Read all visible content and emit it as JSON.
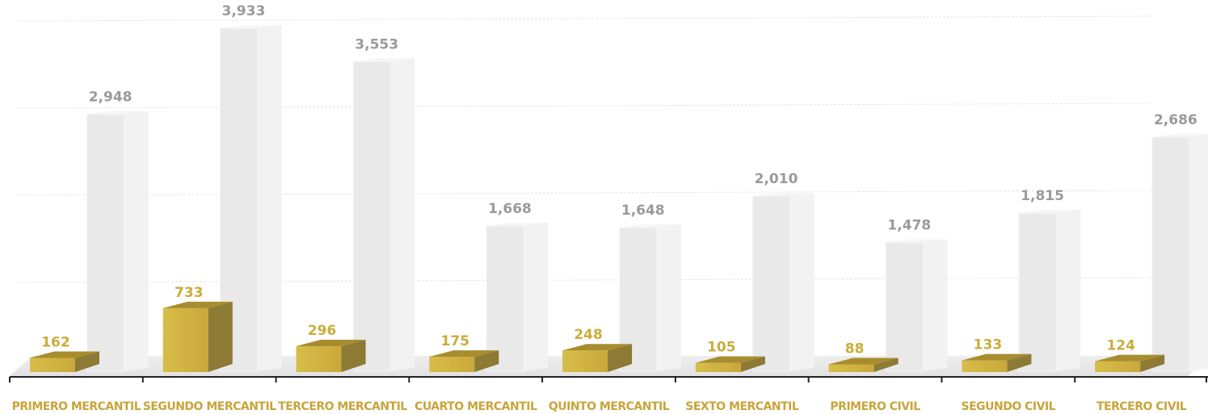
{
  "chart_data": {
    "type": "bar",
    "categories": [
      "PRIMERO MERCANTIL",
      "SEGUNDO MERCANTIL",
      "TERCERO MERCANTIL",
      "CUARTO MERCANTIL",
      "QUINTO MERCANTIL",
      "SEXTO MERCANTIL",
      "PRIMERO CIVIL",
      "SEGUNDO CIVIL",
      "TERCERO CIVIL"
    ],
    "series": [
      {
        "values": [
          162,
          733,
          296,
          175,
          248,
          105,
          88,
          133,
          124
        ]
      },
      {
        "values": [
          2948,
          3933,
          3553,
          1668,
          1648,
          2010,
          1478,
          1815,
          2686
        ]
      }
    ],
    "value_labels": [
      [
        "162",
        "733",
        "296",
        "175",
        "248",
        "105",
        "88",
        "133",
        "124"
      ],
      [
        "2,948",
        "3,933",
        "3,553",
        "1,668",
        "1,648",
        "2,010",
        "1,478",
        "1,815",
        "2,686"
      ]
    ],
    "ylim": [
      0,
      4000
    ],
    "colors": {
      "series1": "#c9ad3a",
      "series2": "#e8e8e8",
      "category_text": "#c9a43a",
      "gray_label": "#9a9a9a"
    },
    "grid": true,
    "legend": "none"
  }
}
